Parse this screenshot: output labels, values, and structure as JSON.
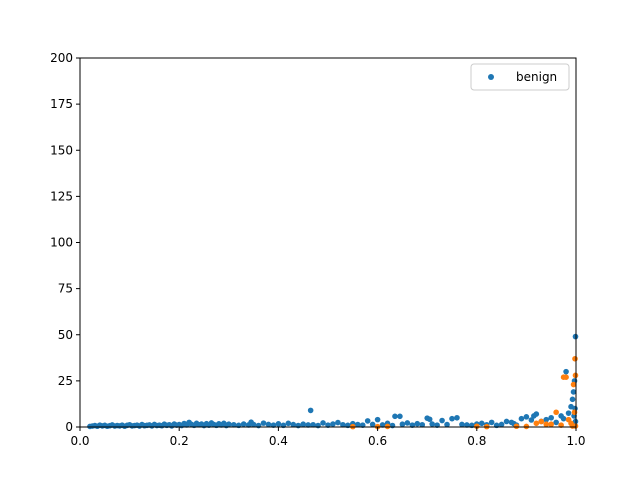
{
  "chart_data": {
    "type": "scatter",
    "title": "",
    "xlabel": "",
    "ylabel": "",
    "xlim": [
      0.0,
      1.0
    ],
    "ylim": [
      0,
      200
    ],
    "xticks": [
      "0.0",
      "0.2",
      "0.4",
      "0.6",
      "0.8",
      "1.0"
    ],
    "yticks": [
      "0",
      "25",
      "50",
      "75",
      "100",
      "125",
      "150",
      "175",
      "200"
    ],
    "grid": false,
    "legend": {
      "location": "top-right",
      "entries": [
        "benign"
      ]
    },
    "series": [
      {
        "name": "benign",
        "color": "#1f77b4",
        "points": [
          [
            0.02,
            0.3
          ],
          [
            0.025,
            0.5
          ],
          [
            0.03,
            0.8
          ],
          [
            0.035,
            0.4
          ],
          [
            0.04,
            1.0
          ],
          [
            0.045,
            0.6
          ],
          [
            0.05,
            0.9
          ],
          [
            0.055,
            0.4
          ],
          [
            0.06,
            0.7
          ],
          [
            0.065,
            1.1
          ],
          [
            0.07,
            0.5
          ],
          [
            0.075,
            0.8
          ],
          [
            0.08,
            0.6
          ],
          [
            0.085,
            1.0
          ],
          [
            0.09,
            0.4
          ],
          [
            0.095,
            0.9
          ],
          [
            0.1,
            1.2
          ],
          [
            0.105,
            0.6
          ],
          [
            0.11,
            0.8
          ],
          [
            0.115,
            1.0
          ],
          [
            0.12,
            0.5
          ],
          [
            0.125,
            1.3
          ],
          [
            0.13,
            0.7
          ],
          [
            0.135,
            0.9
          ],
          [
            0.14,
            1.1
          ],
          [
            0.145,
            0.6
          ],
          [
            0.15,
            1.4
          ],
          [
            0.155,
            0.8
          ],
          [
            0.16,
            1.0
          ],
          [
            0.165,
            0.7
          ],
          [
            0.17,
            1.5
          ],
          [
            0.175,
            0.9
          ],
          [
            0.18,
            1.2
          ],
          [
            0.185,
            0.6
          ],
          [
            0.19,
            1.6
          ],
          [
            0.195,
            1.0
          ],
          [
            0.2,
            1.3
          ],
          [
            0.205,
            0.8
          ],
          [
            0.21,
            1.9
          ],
          [
            0.215,
            1.1
          ],
          [
            0.22,
            2.5
          ],
          [
            0.225,
            1.4
          ],
          [
            0.23,
            0.9
          ],
          [
            0.235,
            2.0
          ],
          [
            0.24,
            1.2
          ],
          [
            0.245,
            1.6
          ],
          [
            0.25,
            0.8
          ],
          [
            0.255,
            1.8
          ],
          [
            0.26,
            1.0
          ],
          [
            0.265,
            2.2
          ],
          [
            0.27,
            1.3
          ],
          [
            0.275,
            0.9
          ],
          [
            0.28,
            1.7
          ],
          [
            0.285,
            1.1
          ],
          [
            0.29,
            2.0
          ],
          [
            0.295,
            0.8
          ],
          [
            0.3,
            1.5
          ],
          [
            0.31,
            1.2
          ],
          [
            0.32,
            0.9
          ],
          [
            0.33,
            1.6
          ],
          [
            0.34,
            1.1
          ],
          [
            0.345,
            2.6
          ],
          [
            0.35,
            1.3
          ],
          [
            0.36,
            0.8
          ],
          [
            0.37,
            2.1
          ],
          [
            0.38,
            1.4
          ],
          [
            0.39,
            1.0
          ],
          [
            0.4,
            1.7
          ],
          [
            0.41,
            0.9
          ],
          [
            0.42,
            2.0
          ],
          [
            0.43,
            1.3
          ],
          [
            0.44,
            0.8
          ],
          [
            0.45,
            1.5
          ],
          [
            0.46,
            1.1
          ],
          [
            0.465,
            9.0
          ],
          [
            0.47,
            1.2
          ],
          [
            0.48,
            0.8
          ],
          [
            0.49,
            2.2
          ],
          [
            0.5,
            1.0
          ],
          [
            0.51,
            1.6
          ],
          [
            0.52,
            2.4
          ],
          [
            0.53,
            1.2
          ],
          [
            0.54,
            0.9
          ],
          [
            0.55,
            1.8
          ],
          [
            0.56,
            1.3
          ],
          [
            0.57,
            1.0
          ],
          [
            0.58,
            3.3
          ],
          [
            0.59,
            1.4
          ],
          [
            0.6,
            4.0
          ],
          [
            0.61,
            1.1
          ],
          [
            0.62,
            2.0
          ],
          [
            0.63,
            0.8
          ],
          [
            0.635,
            5.8
          ],
          [
            0.645,
            5.8
          ],
          [
            0.65,
            1.5
          ],
          [
            0.66,
            2.2
          ],
          [
            0.67,
            1.0
          ],
          [
            0.68,
            1.8
          ],
          [
            0.69,
            1.2
          ],
          [
            0.7,
            4.8
          ],
          [
            0.705,
            4.2
          ],
          [
            0.71,
            1.6
          ],
          [
            0.72,
            1.0
          ],
          [
            0.73,
            3.5
          ],
          [
            0.74,
            1.3
          ],
          [
            0.75,
            4.5
          ],
          [
            0.76,
            5.0
          ],
          [
            0.77,
            1.4
          ],
          [
            0.78,
            1.1
          ],
          [
            0.79,
            0.9
          ],
          [
            0.8,
            1.6
          ],
          [
            0.81,
            2.0
          ],
          [
            0.82,
            1.2
          ],
          [
            0.83,
            2.5
          ],
          [
            0.84,
            0.9
          ],
          [
            0.85,
            1.4
          ],
          [
            0.86,
            3.0
          ],
          [
            0.87,
            2.5
          ],
          [
            0.875,
            1.8
          ],
          [
            0.88,
            1.0
          ],
          [
            0.89,
            4.5
          ],
          [
            0.9,
            5.5
          ],
          [
            0.91,
            3.8
          ],
          [
            0.915,
            6.0
          ],
          [
            0.92,
            7.0
          ],
          [
            0.93,
            3.0
          ],
          [
            0.94,
            4.0
          ],
          [
            0.95,
            5.0
          ],
          [
            0.96,
            2.5
          ],
          [
            0.97,
            6.0
          ],
          [
            0.975,
            4.5
          ],
          [
            0.98,
            30.0
          ],
          [
            0.985,
            7.5
          ],
          [
            0.99,
            11.0
          ],
          [
            0.993,
            15.0
          ],
          [
            0.995,
            19.0
          ],
          [
            0.997,
            25.0
          ],
          [
            0.998,
            10.0
          ],
          [
            0.999,
            49.0
          ],
          [
            0.999,
            3.0
          ],
          [
            0.996,
            6.0
          ]
        ]
      },
      {
        "name": "",
        "color": "#ff7f0e",
        "points": [
          [
            0.55,
            0.2
          ],
          [
            0.6,
            0.2
          ],
          [
            0.62,
            0.3
          ],
          [
            0.8,
            0.4
          ],
          [
            0.82,
            0.2
          ],
          [
            0.88,
            0.4
          ],
          [
            0.9,
            0.3
          ],
          [
            0.92,
            2.0
          ],
          [
            0.93,
            3.0
          ],
          [
            0.94,
            1.5
          ],
          [
            0.95,
            1.5
          ],
          [
            0.96,
            8.0
          ],
          [
            0.97,
            1.0
          ],
          [
            0.975,
            27.0
          ],
          [
            0.98,
            27.0
          ],
          [
            0.985,
            4.0
          ],
          [
            0.99,
            2.0
          ],
          [
            0.993,
            0.5
          ],
          [
            0.995,
            23.0
          ],
          [
            0.997,
            8.0
          ],
          [
            0.998,
            37.0
          ],
          [
            0.999,
            28.0
          ],
          [
            0.999,
            0.5
          ]
        ]
      }
    ]
  }
}
